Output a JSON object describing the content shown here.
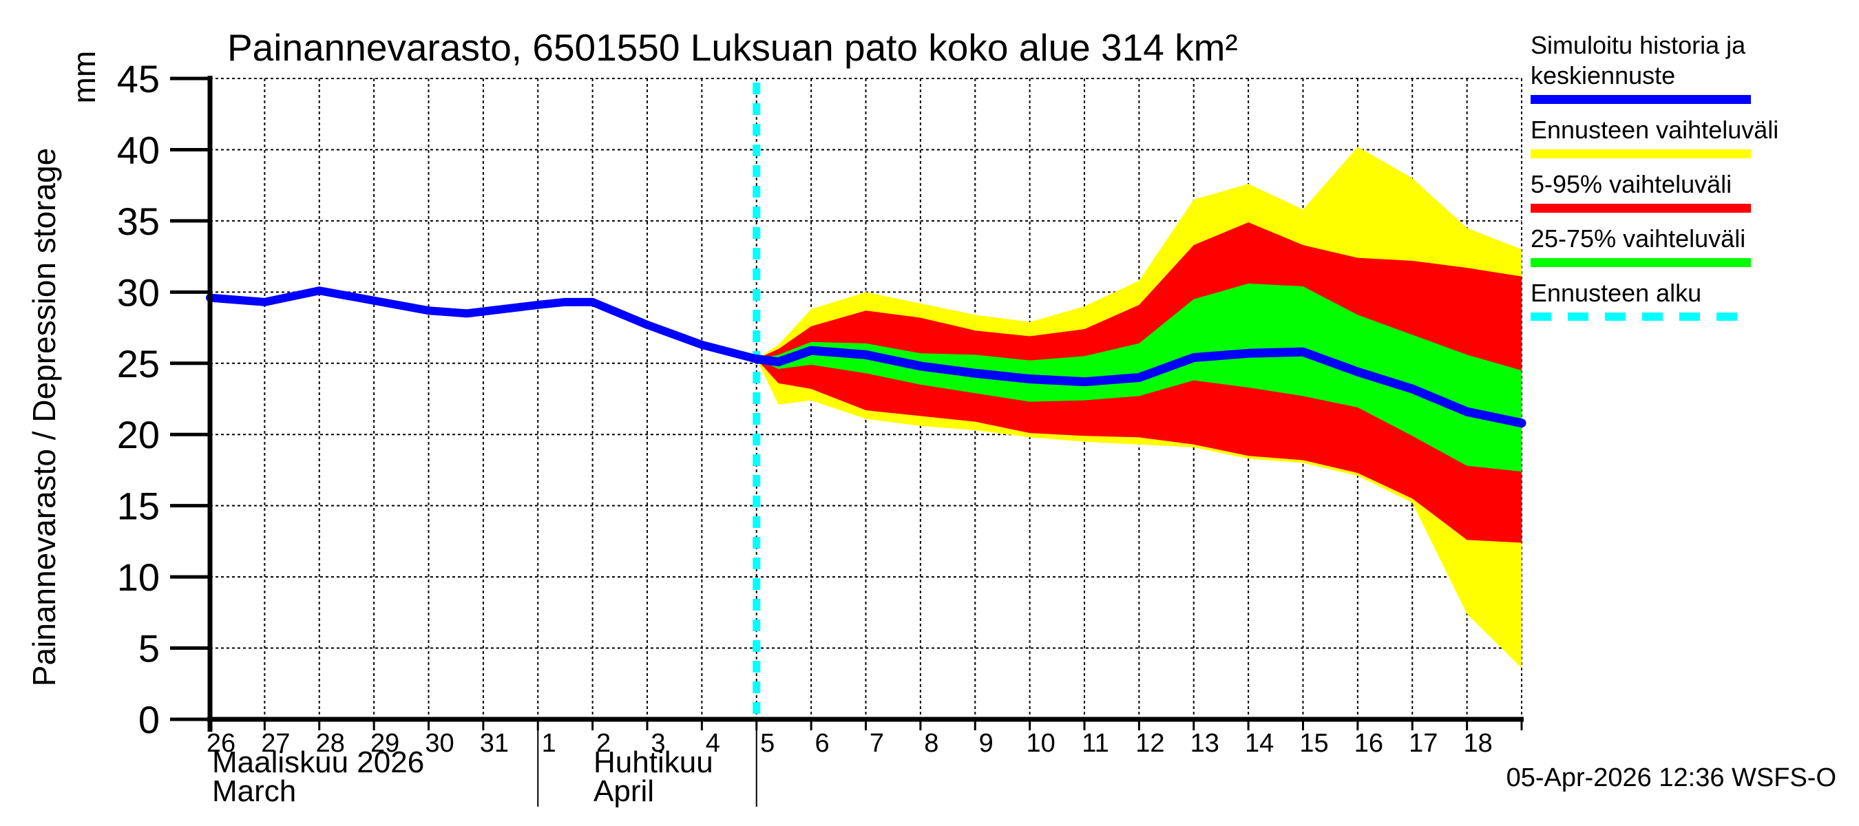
{
  "title": "Painannevarasto, 6501550 Luksuan pato koko alue 314 km²",
  "y_axis": {
    "unit": "mm",
    "label": "Painannevarasto / Depression storage",
    "tick_labels": [
      "0",
      "5",
      "10",
      "15",
      "20",
      "25",
      "30",
      "35",
      "40",
      "45"
    ],
    "min": 0,
    "max": 45
  },
  "x_axis": {
    "day_labels": [
      "26",
      "27",
      "28",
      "29",
      "30",
      "31",
      "1",
      "2",
      "3",
      "4",
      "5",
      "6",
      "7",
      "8",
      "9",
      "10",
      "11",
      "12",
      "13",
      "14",
      "15",
      "16",
      "17",
      "18"
    ],
    "months": [
      {
        "name_fi": "Maaliskuu 2026",
        "name_en": "March"
      },
      {
        "name_fi": "Huhtikuu",
        "name_en": "April"
      }
    ]
  },
  "footer": {
    "timestamp": "05-Apr-2026 12:36 WSFS-O"
  },
  "legend": {
    "items": [
      {
        "label": "Simuloitu historia ja\nkeskiennuste",
        "color": "#0000ff",
        "style": "solid"
      },
      {
        "label": "Ennusteen vaihteluväli",
        "color": "#ffff00",
        "style": "solid"
      },
      {
        "label": "5-95% vaihteluväli",
        "color": "#ff0000",
        "style": "solid"
      },
      {
        "label": "25-75% vaihteluväli",
        "color": "#00ff00",
        "style": "solid"
      },
      {
        "label": "Ennusteen alku",
        "color": "#00ffff",
        "style": "dashed"
      }
    ]
  },
  "colors": {
    "history_and_median": "#0000ff",
    "forecast_total_range": "#ffff00",
    "range_5_95": "#ff0000",
    "range_25_75": "#00ff00",
    "forecast_start": "#00ffff",
    "grid": "#000000"
  },
  "chart_data": {
    "type": "line",
    "title": "Painannevarasto, 6501550 Luksuan pato koko alue 314 km²",
    "ylabel": "Painannevarasto / Depression storage (mm)",
    "ylim": [
      0,
      45
    ],
    "x_unit": "days since 2026-03-26 (0 = 26 March 2026, 24 = 19 April 2026)",
    "x_range": [
      0,
      24
    ],
    "grid": true,
    "legend_position": "top-right",
    "forecast_start_x": 10,
    "forecast_start_date": "2026-04-05",
    "history": {
      "name": "Simuloitu historia ja keskiennuste",
      "color": "#0000ff",
      "x": [
        0,
        1,
        2,
        3,
        4,
        4.7,
        6,
        6.5,
        7,
        8,
        9,
        10
      ],
      "values": [
        29.6,
        29.3,
        30.1,
        29.4,
        28.7,
        28.5,
        29.1,
        29.3,
        29.3,
        27.7,
        26.3,
        25.3
      ]
    },
    "forecast": {
      "x": [
        10,
        10.4,
        11,
        12,
        13,
        14,
        15,
        16,
        17,
        18,
        19,
        20,
        21,
        22,
        23,
        24
      ],
      "median": {
        "name": "Keskiennuste",
        "color": "#0000ff",
        "values": [
          25.3,
          25.1,
          25.9,
          25.6,
          24.8,
          24.3,
          23.9,
          23.7,
          24.0,
          25.4,
          25.7,
          25.8,
          24.4,
          23.2,
          21.6,
          20.8
        ]
      },
      "bands": [
        {
          "name": "Ennusteen vaihteluväli",
          "color": "#ffff00",
          "upper": [
            25.3,
            26.3,
            28.8,
            30.0,
            29.2,
            28.4,
            27.9,
            29.0,
            30.8,
            36.5,
            37.6,
            35.8,
            40.2,
            38.0,
            34.5,
            33.0
          ],
          "lower": [
            25.3,
            22.1,
            22.4,
            21.1,
            20.6,
            20.3,
            19.8,
            19.5,
            19.3,
            19.1,
            18.3,
            18.0,
            17.1,
            15.2,
            7.4,
            3.6
          ]
        },
        {
          "name": "5-95% vaihteluväli",
          "color": "#ff0000",
          "upper": [
            25.3,
            26.0,
            27.6,
            28.7,
            28.2,
            27.3,
            26.9,
            27.4,
            29.1,
            33.3,
            34.9,
            33.3,
            32.4,
            32.2,
            31.7,
            31.1
          ],
          "lower": [
            25.3,
            23.6,
            23.2,
            21.7,
            21.3,
            20.9,
            20.1,
            19.9,
            19.8,
            19.3,
            18.5,
            18.2,
            17.3,
            15.5,
            12.6,
            12.4
          ]
        },
        {
          "name": "25-75% vaihteluväli",
          "color": "#00ff00",
          "upper": [
            25.3,
            25.6,
            26.5,
            26.4,
            25.7,
            25.6,
            25.2,
            25.5,
            26.4,
            29.5,
            30.6,
            30.4,
            28.4,
            27.0,
            25.6,
            24.5
          ],
          "lower": [
            25.3,
            24.6,
            24.9,
            24.3,
            23.5,
            22.9,
            22.3,
            22.4,
            22.7,
            23.8,
            23.3,
            22.7,
            21.9,
            19.9,
            17.8,
            17.4
          ]
        }
      ]
    }
  }
}
